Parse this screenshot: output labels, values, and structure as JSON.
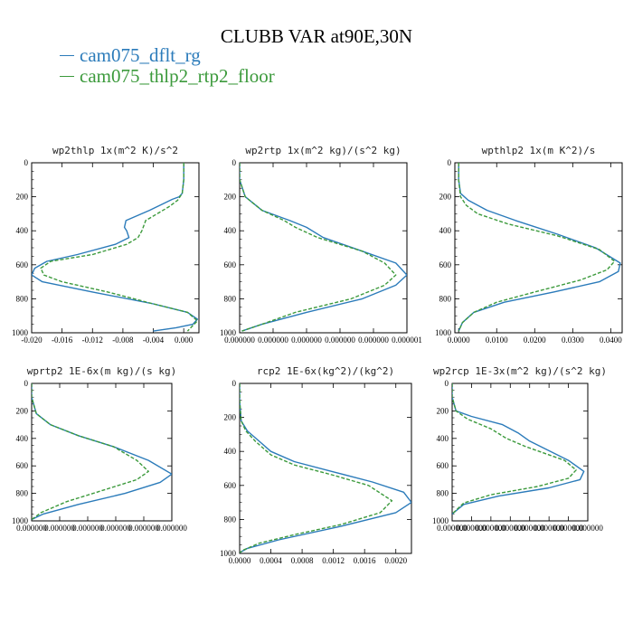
{
  "figure": {
    "title": "CLUBB VAR at90E,30N"
  },
  "legend": [
    {
      "name": "cam075_dflt_rg",
      "color": "#2b7bba"
    },
    {
      "name": "cam075_thlp2_rtp2_floor",
      "color": "#3c9a3c"
    }
  ],
  "chart_data": [
    {
      "type": "line",
      "title": "wp2thlp   1x(m^2 K)/s^2",
      "xlim": [
        -0.02,
        0.002
      ],
      "ylim": [
        1000,
        0
      ],
      "xticks": [
        "-0.020",
        "-0.016",
        "-0.012",
        "-0.008",
        "-0.004",
        "0.000"
      ],
      "xtick_values": [
        -0.02,
        -0.016,
        -0.012,
        -0.008,
        -0.004,
        0.0
      ],
      "yticks": [
        "0",
        "200",
        "400",
        "600",
        "800",
        "1000"
      ],
      "yaxis": "pressure",
      "series": [
        {
          "name": "cam075_dflt_rg",
          "style": "solid",
          "x": [
            0.0,
            0.0,
            -0.0002,
            -0.0006,
            -0.0015,
            -0.0045,
            -0.0076,
            -0.0078,
            -0.0075,
            -0.0072,
            -0.009,
            -0.014,
            -0.018,
            -0.0196,
            -0.02,
            -0.0186,
            -0.012,
            -0.004,
            0.0005,
            0.0018,
            0.0012,
            -0.001,
            -0.004
          ],
          "y": [
            0,
            100,
            180,
            200,
            215,
            280,
            340,
            380,
            400,
            440,
            480,
            540,
            580,
            620,
            660,
            700,
            760,
            830,
            880,
            920,
            950,
            970,
            990
          ]
        },
        {
          "name": "cam075_thlp2_rtp2_floor",
          "style": "dashed",
          "x": [
            0.0,
            0.0,
            -0.0002,
            -0.0008,
            -0.002,
            -0.0035,
            -0.005,
            -0.0055,
            -0.006,
            -0.0075,
            -0.012,
            -0.0175,
            -0.0188,
            -0.0184,
            -0.016,
            -0.01,
            -0.004,
            0.0005,
            0.0018,
            0.0005
          ],
          "y": [
            0,
            100,
            180,
            220,
            260,
            300,
            340,
            400,
            440,
            480,
            540,
            580,
            620,
            660,
            700,
            760,
            830,
            880,
            930,
            990
          ]
        }
      ]
    },
    {
      "type": "line",
      "title": "wp2rtp   1x(m^2 kg)/(s^2 kg)",
      "xlim": [
        0,
        1.5e-06
      ],
      "ylim": [
        1000,
        0
      ],
      "xticks": [
        "0.000000",
        "0.000000",
        "0.000000",
        "0.000000",
        "0.000000",
        "0.000001"
      ],
      "xtick_values": [
        0,
        3e-07,
        6e-07,
        9e-07,
        1.2e-06,
        1.5e-06
      ],
      "yticks": [
        "0",
        "200",
        "400",
        "600",
        "800",
        "1000"
      ],
      "yaxis": "pressure",
      "series": [
        {
          "name": "cam075_dflt_rg",
          "style": "solid",
          "x": [
            0.0,
            0.0,
            5e-08,
            2e-07,
            4.5e-07,
            6e-07,
            7.5e-07,
            1.1e-06,
            1.4e-06,
            1.5e-06,
            1.4e-06,
            1.1e-06,
            6e-07,
            2e-07,
            2e-08
          ],
          "y": [
            0,
            100,
            200,
            280,
            340,
            380,
            440,
            520,
            590,
            660,
            720,
            800,
            880,
            950,
            990
          ]
        },
        {
          "name": "cam075_thlp2_rtp2_floor",
          "style": "dashed",
          "x": [
            0.0,
            0.0,
            5e-08,
            2e-07,
            4e-07,
            5e-07,
            7e-07,
            1.1e-06,
            1.3e-06,
            1.4e-06,
            1.3e-06,
            1e-06,
            5e-07,
            2e-07,
            2e-08
          ],
          "y": [
            0,
            100,
            200,
            280,
            340,
            380,
            440,
            520,
            590,
            660,
            720,
            800,
            880,
            950,
            990
          ]
        }
      ]
    },
    {
      "type": "line",
      "title": "wpthlp2   1x(m K^2)/s",
      "xlim": [
        -0.001,
        0.043
      ],
      "ylim": [
        1000,
        0
      ],
      "xticks": [
        "0.0000",
        "0.0100",
        "0.0200",
        "0.0300",
        "0.0400"
      ],
      "xtick_values": [
        0.0,
        0.01,
        0.02,
        0.03,
        0.04
      ],
      "yticks": [
        "0",
        "200",
        "400",
        "600",
        "800",
        "1000"
      ],
      "yaxis": "pressure",
      "series": [
        {
          "name": "cam075_dflt_rg",
          "style": "solid",
          "x": [
            0.0,
            0.0,
            0.0005,
            0.0025,
            0.0075,
            0.015,
            0.026,
            0.036,
            0.0425,
            0.042,
            0.037,
            0.025,
            0.012,
            0.004,
            0.001,
            0.0
          ],
          "y": [
            0,
            100,
            180,
            220,
            280,
            340,
            420,
            500,
            590,
            640,
            700,
            760,
            820,
            880,
            940,
            990
          ]
        },
        {
          "name": "cam075_thlp2_rtp2_floor",
          "style": "dashed",
          "x": [
            0.0,
            0.0,
            0.0005,
            0.002,
            0.005,
            0.013,
            0.026,
            0.037,
            0.041,
            0.039,
            0.032,
            0.02,
            0.01,
            0.004,
            0.001,
            0.0
          ],
          "y": [
            0,
            100,
            200,
            250,
            300,
            360,
            430,
            510,
            580,
            630,
            690,
            760,
            820,
            880,
            940,
            990
          ]
        }
      ]
    },
    {
      "type": "line",
      "title": "wprtp2   1E-6x(m kg)/(s kg)",
      "xlim": [
        0,
        6e-07
      ],
      "ylim": [
        1000,
        0
      ],
      "xticks": [
        "0.000000",
        "0.000000",
        "0.000000",
        "0.000000",
        "0.000000",
        "0.000000"
      ],
      "xtick_values": [
        0,
        1.2e-07,
        2.4e-07,
        3.6e-07,
        4.8e-07,
        6e-07
      ],
      "yticks": [
        "0",
        "200",
        "400",
        "600",
        "800",
        "1000"
      ],
      "yaxis": "pressure",
      "series": [
        {
          "name": "cam075_dflt_rg",
          "style": "solid",
          "x": [
            0.0,
            0.0,
            2e-08,
            8e-08,
            2e-07,
            3.5e-07,
            5e-07,
            6e-07,
            5.5e-07,
            4e-07,
            2e-07,
            5e-08,
            0.0
          ],
          "y": [
            0,
            100,
            220,
            300,
            380,
            460,
            560,
            660,
            720,
            800,
            880,
            950,
            990
          ]
        },
        {
          "name": "cam075_thlp2_rtp2_floor",
          "style": "dashed",
          "x": [
            0.0,
            0.0,
            2e-08,
            8e-08,
            2e-07,
            3.5e-07,
            4.5e-07,
            5e-07,
            4.5e-07,
            3e-07,
            1.5e-07,
            4e-08,
            0.0
          ],
          "y": [
            0,
            100,
            220,
            300,
            380,
            460,
            560,
            640,
            700,
            780,
            860,
            940,
            990
          ]
        }
      ]
    },
    {
      "type": "line",
      "title": "rcp2   1E-6x(kg^2)/(kg^2)",
      "xlim": [
        0,
        0.0022
      ],
      "ylim": [
        1000,
        0
      ],
      "xticks": [
        "0.0000",
        "0.0004",
        "0.0008",
        "0.0012",
        "0.0016",
        "0.0020"
      ],
      "xtick_values": [
        0,
        0.0004,
        0.0008,
        0.0012,
        0.0016,
        0.002
      ],
      "yticks": [
        "0",
        "200",
        "400",
        "600",
        "800",
        "1000"
      ],
      "yaxis": "pressure",
      "series": [
        {
          "name": "cam075_dflt_rg",
          "style": "solid",
          "x": [
            0.0,
            0.0,
            2e-05,
            0.0001,
            0.00025,
            0.0004,
            0.0007,
            0.0012,
            0.0017,
            0.0021,
            0.0022,
            0.002,
            0.0013,
            0.0005,
            0.0001,
            0.0
          ],
          "y": [
            0,
            100,
            220,
            280,
            340,
            400,
            460,
            520,
            580,
            640,
            700,
            760,
            840,
            920,
            970,
            995
          ]
        },
        {
          "name": "cam075_thlp2_rtp2_floor",
          "style": "dashed",
          "x": [
            0.0,
            0.0,
            2e-05,
            8e-05,
            0.0002,
            0.0004,
            0.0007,
            0.0012,
            0.00165,
            0.00195,
            0.0018,
            0.0013,
            0.0007,
            0.00025,
            5e-05,
            0.0
          ],
          "y": [
            0,
            100,
            220,
            280,
            340,
            420,
            480,
            540,
            600,
            690,
            760,
            830,
            890,
            940,
            980,
            995
          ]
        }
      ]
    },
    {
      "type": "line",
      "title": "wp2rcp   1E-3x(m^2 kg)/(s^2 kg)",
      "xlim": [
        0,
        3.5e-06
      ],
      "ylim": [
        1000,
        0
      ],
      "xticks": [
        "0.000000",
        "0.000000",
        "0.000000",
        "0.000000",
        "0.000000",
        "0.000000",
        "0.000000",
        "0.000000"
      ],
      "xtick_values": [
        0,
        5e-07,
        1e-06,
        1.5e-06,
        2e-06,
        2.5e-06,
        3e-06,
        3.5e-06
      ],
      "yticks": [
        "0",
        "200",
        "400",
        "600",
        "800",
        "1000"
      ],
      "yaxis": "pressure",
      "series": [
        {
          "name": "cam075_dflt_rg",
          "style": "solid",
          "x": [
            0.0,
            0.0,
            1e-07,
            5e-07,
            1.3e-06,
            1.7e-06,
            2e-06,
            3e-06,
            3.4e-06,
            3.3e-06,
            2.5e-06,
            1.2e-06,
            3e-07,
            0.0
          ],
          "y": [
            0,
            100,
            200,
            240,
            300,
            360,
            420,
            560,
            640,
            700,
            760,
            820,
            880,
            950
          ]
        },
        {
          "name": "cam075_thlp2_rtp2_floor",
          "style": "dashed",
          "x": [
            0.0,
            0.0,
            1e-07,
            4e-07,
            1e-06,
            1.4e-06,
            1.9e-06,
            2.9e-06,
            3.2e-06,
            3e-06,
            2.2e-06,
            1e-06,
            3e-07,
            0.0
          ],
          "y": [
            0,
            100,
            200,
            260,
            330,
            400,
            460,
            560,
            630,
            690,
            750,
            810,
            870,
            950
          ]
        }
      ]
    }
  ]
}
